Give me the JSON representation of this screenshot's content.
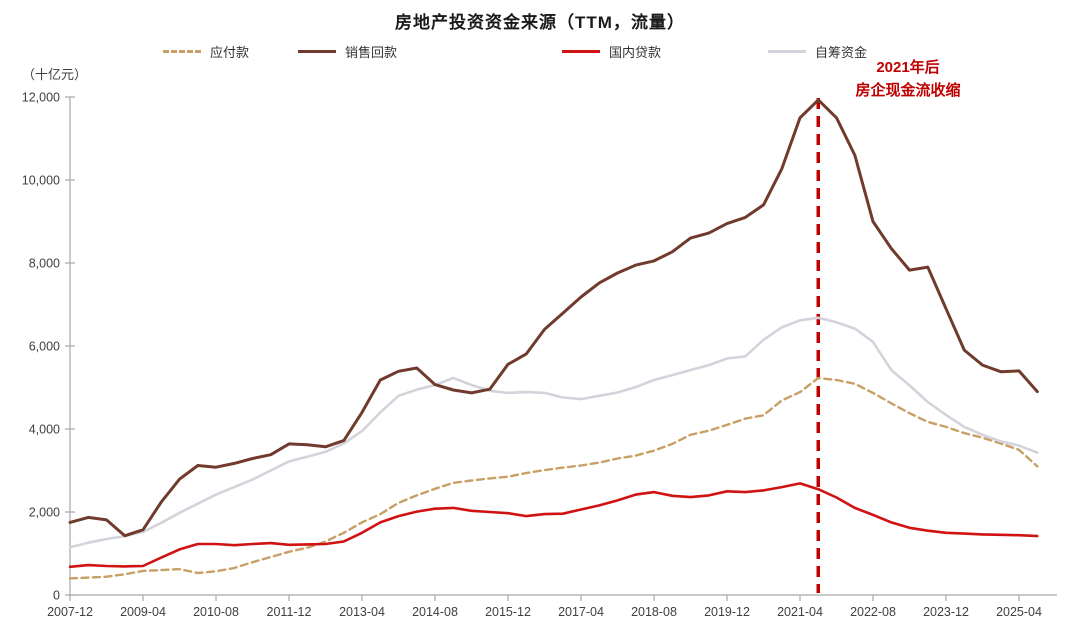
{
  "title": "房地产投资资金来源（TTM，流量）",
  "y_unit_label": "（十亿元）",
  "annotation": {
    "line1": "2021年后",
    "line2": "房企现金流收缩",
    "color": "#c00000"
  },
  "colors": {
    "axis": "#a6a6a6",
    "tick_text": "#404040",
    "background": "#ffffff"
  },
  "chart_data": {
    "type": "line",
    "title": "房地产投资资金来源（TTM，流量）",
    "y_unit": "十亿元",
    "x_start": "2007-12",
    "x_step_months": 4,
    "x_tick_step_months": 16,
    "x_tick_labels": [
      "2007-12",
      "2009-04",
      "2010-08",
      "2011-12",
      "2013-04",
      "2014-08",
      "2015-12",
      "2017-04",
      "2018-08",
      "2019-12",
      "2021-04",
      "2022-08",
      "2023-12",
      "2025-04"
    ],
    "y_ticks": [
      0,
      2000,
      4000,
      6000,
      8000,
      10000,
      12000
    ],
    "y_tick_labels": [
      "0",
      "2,000",
      "4,000",
      "6,000",
      "8,000",
      "10,000",
      "12,000"
    ],
    "ylim": [
      0,
      12000
    ],
    "grid": false,
    "legend_position": "top",
    "vline": {
      "x_month_offset": 164,
      "at": "2021-08",
      "color": "#c00000",
      "style": "dashed"
    },
    "series": [
      {
        "name": "应付款",
        "color": "#c8a066",
        "dash": true,
        "width": 2.4,
        "values": [
          400,
          420,
          440,
          500,
          580,
          600,
          625,
          530,
          570,
          650,
          790,
          915,
          1040,
          1140,
          1290,
          1500,
          1750,
          1950,
          2220,
          2400,
          2560,
          2700,
          2760,
          2810,
          2850,
          2940,
          3010,
          3070,
          3120,
          3190,
          3290,
          3360,
          3480,
          3640,
          3860,
          3960,
          4100,
          4250,
          4330,
          4690,
          4890,
          5230,
          5180,
          5090,
          4870,
          4620,
          4380,
          4170,
          4050,
          3900,
          3790,
          3650,
          3500,
          3100
        ]
      },
      {
        "name": "销售回款",
        "color": "#703b2c",
        "dash": false,
        "width": 3,
        "values": [
          1750,
          1870,
          1810,
          1430,
          1570,
          2240,
          2790,
          3120,
          3080,
          3170,
          3290,
          3380,
          3640,
          3620,
          3570,
          3720,
          4400,
          5180,
          5390,
          5470,
          5070,
          4940,
          4870,
          4960,
          5560,
          5810,
          6400,
          6790,
          7180,
          7520,
          7760,
          7950,
          8050,
          8270,
          8600,
          8720,
          8950,
          9100,
          9400,
          10270,
          11500,
          11930,
          11500,
          10600,
          9000,
          8350,
          7830,
          7900,
          6900,
          5900,
          5540,
          5380,
          5400,
          4900
        ]
      },
      {
        "name": "国内贷款",
        "color": "#d01212",
        "dash": false,
        "width": 2.6,
        "values": [
          680,
          720,
          700,
          690,
          700,
          900,
          1100,
          1230,
          1230,
          1200,
          1230,
          1250,
          1210,
          1220,
          1230,
          1290,
          1500,
          1750,
          1900,
          2010,
          2080,
          2100,
          2030,
          2000,
          1970,
          1900,
          1950,
          1960,
          2060,
          2160,
          2280,
          2420,
          2480,
          2390,
          2360,
          2400,
          2500,
          2480,
          2520,
          2600,
          2690,
          2550,
          2350,
          2100,
          1930,
          1750,
          1620,
          1550,
          1500,
          1480,
          1460,
          1450,
          1440,
          1420
        ]
      },
      {
        "name": "自筹资金",
        "color": "#d3d3dc",
        "dash": false,
        "width": 2.6,
        "values": [
          1150,
          1260,
          1350,
          1420,
          1520,
          1740,
          1980,
          2200,
          2420,
          2600,
          2780,
          3000,
          3220,
          3330,
          3450,
          3650,
          3950,
          4400,
          4800,
          4950,
          5060,
          5230,
          5060,
          4920,
          4870,
          4890,
          4870,
          4760,
          4720,
          4800,
          4880,
          5010,
          5180,
          5300,
          5420,
          5540,
          5700,
          5750,
          6150,
          6450,
          6620,
          6680,
          6570,
          6420,
          6100,
          5420,
          5050,
          4650,
          4340,
          4050,
          3860,
          3700,
          3600,
          3430
        ]
      }
    ]
  }
}
